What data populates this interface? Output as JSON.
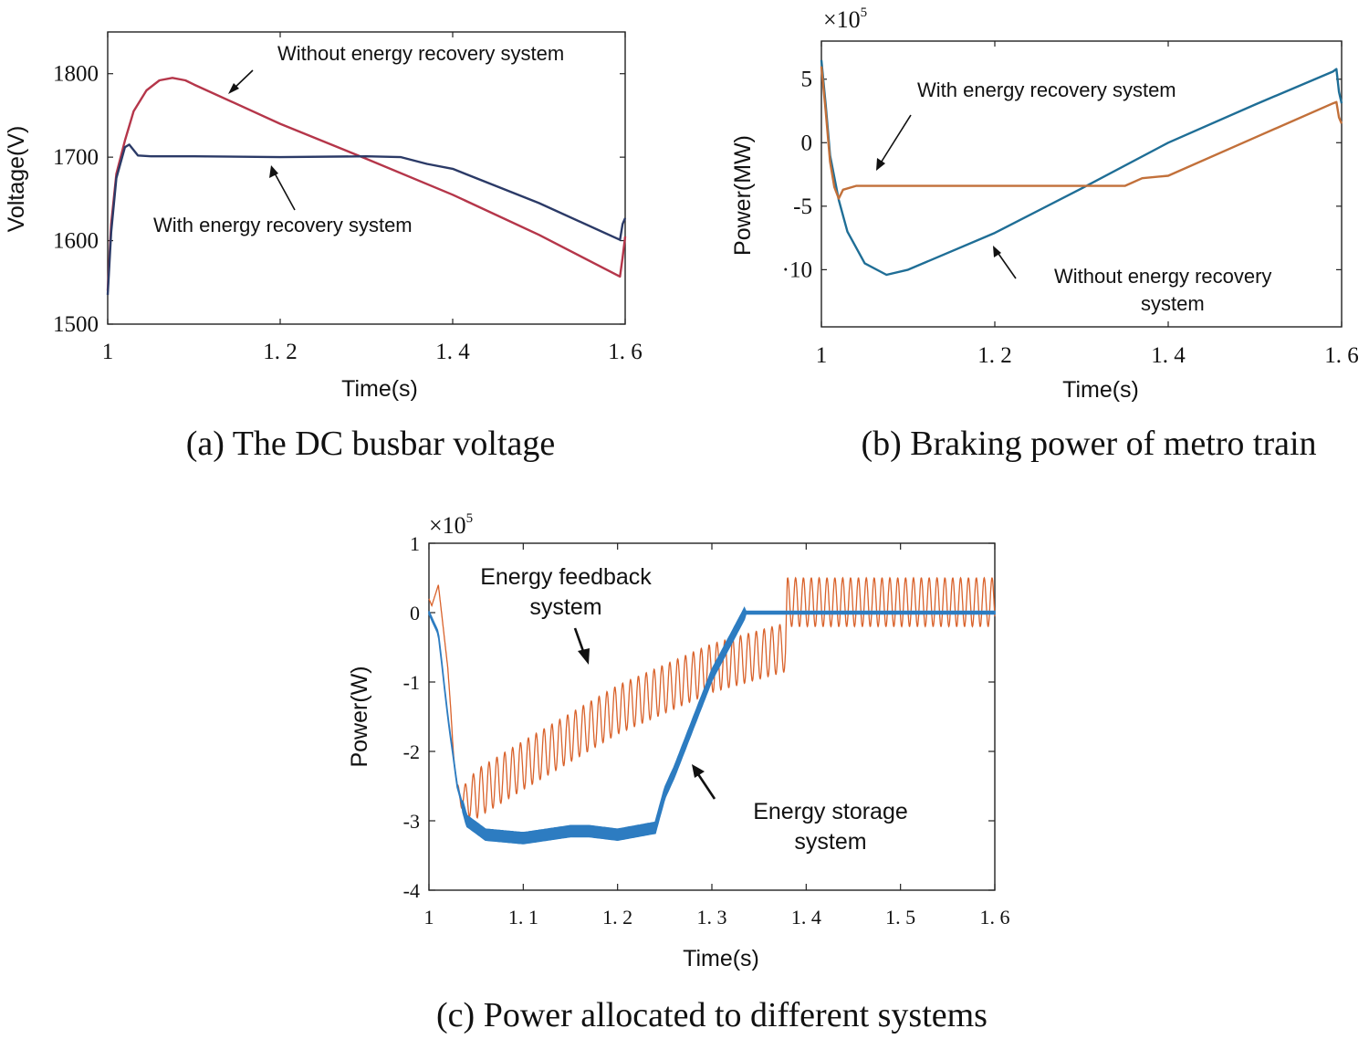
{
  "chart_data": [
    {
      "id": "a",
      "type": "line",
      "caption": "(a) The DC busbar voltage",
      "xlabel": "Time(s)",
      "ylabel": "Voltage(V)",
      "xlim": [
        1,
        1.6
      ],
      "ylim": [
        1500,
        1850
      ],
      "xticks": [
        1,
        1.2,
        1.4,
        1.6
      ],
      "xtick_labels": [
        "1",
        "1. 2",
        "1. 4",
        "1. 6"
      ],
      "yticks": [
        1500,
        1600,
        1700,
        1800
      ],
      "ytick_labels": [
        "1500",
        "1600",
        "1700",
        "1800"
      ],
      "series": [
        {
          "name": "Without energy recovery system",
          "color": "#b5364a",
          "x": [
            1.0,
            1.004,
            1.01,
            1.02,
            1.03,
            1.045,
            1.06,
            1.075,
            1.09,
            1.1,
            1.2,
            1.3,
            1.4,
            1.5,
            1.594,
            1.597,
            1.6
          ],
          "y": [
            1540,
            1620,
            1680,
            1720,
            1755,
            1780,
            1792,
            1795,
            1792,
            1787,
            1740,
            1698,
            1655,
            1607,
            1557,
            1580,
            1605
          ]
        },
        {
          "name": "With energy recovery system",
          "color": "#2b3a67",
          "x": [
            1.0,
            1.004,
            1.01,
            1.02,
            1.025,
            1.035,
            1.05,
            1.1,
            1.2,
            1.3,
            1.34,
            1.37,
            1.4,
            1.5,
            1.594,
            1.597,
            1.6
          ],
          "y": [
            1535,
            1610,
            1675,
            1712,
            1715,
            1702,
            1701,
            1701,
            1700,
            1701,
            1700,
            1692,
            1686,
            1645,
            1601,
            1620,
            1627
          ]
        }
      ],
      "annotations": [
        "Without energy recovery system",
        "With energy recovery system"
      ]
    },
    {
      "id": "b",
      "type": "line",
      "caption": "(b) Braking power of metro train",
      "xlabel": "Time(s)",
      "ylabel": "Power(MW)",
      "multiplier": "×10",
      "multiplier_exp": "5",
      "xlim": [
        1,
        1.6
      ],
      "ylim": [
        -14.5,
        8
      ],
      "xticks": [
        1,
        1.2,
        1.4,
        1.6
      ],
      "xtick_labels": [
        "1",
        "1. 2",
        "1. 4",
        "1. 6"
      ],
      "yticks": [
        5,
        0,
        -5,
        -10
      ],
      "ytick_labels": [
        "5",
        "0",
        "-5",
        "·10"
      ],
      "series": [
        {
          "name": "Without energy recovery system",
          "color": "#1f6e96",
          "x": [
            1.0,
            1.005,
            1.01,
            1.02,
            1.03,
            1.05,
            1.075,
            1.1,
            1.2,
            1.3,
            1.4,
            1.5,
            1.59,
            1.594,
            1.597,
            1.6
          ],
          "y": [
            6.5,
            3.0,
            -1.0,
            -4.5,
            -7.0,
            -9.5,
            -10.4,
            -10.0,
            -7.1,
            -3.6,
            0.0,
            3.0,
            5.6,
            5.8,
            4.0,
            3.1
          ]
        },
        {
          "name": "With energy recovery system",
          "color": "#c2703a",
          "x": [
            1.0,
            1.005,
            1.01,
            1.015,
            1.02,
            1.025,
            1.04,
            1.1,
            1.2,
            1.3,
            1.35,
            1.37,
            1.4,
            1.5,
            1.59,
            1.594,
            1.597,
            1.6
          ],
          "y": [
            6.0,
            2.5,
            -1.5,
            -3.5,
            -4.4,
            -3.7,
            -3.4,
            -3.4,
            -3.4,
            -3.4,
            -3.4,
            -2.8,
            -2.6,
            0.4,
            3.1,
            3.2,
            2.0,
            1.5
          ]
        }
      ],
      "annotations": [
        "With energy recovery system",
        "Without  energy recovery",
        "system"
      ]
    },
    {
      "id": "c",
      "type": "line",
      "caption": "(c) Power allocated to different systems",
      "xlabel": "Time(s)",
      "ylabel": "Power(W)",
      "multiplier": "×10",
      "multiplier_exp": "5",
      "xlim": [
        1,
        1.6
      ],
      "ylim": [
        -4,
        1
      ],
      "xticks": [
        1,
        1.1,
        1.2,
        1.3,
        1.4,
        1.5,
        1.6
      ],
      "xtick_labels": [
        "1",
        "1. 1",
        "1. 2",
        "1. 3",
        "1. 4",
        "1. 5",
        "1. 6"
      ],
      "yticks": [
        1,
        0,
        -1,
        -2,
        -3,
        -4
      ],
      "ytick_labels": [
        "1",
        "0",
        "-1",
        "-2",
        "-3",
        "-4"
      ],
      "series": [
        {
          "name": "Energy feedback system",
          "color": "#d9622b",
          "x": [
            1.0,
            1.003,
            1.01,
            1.02,
            1.025,
            1.03,
            1.04,
            1.1,
            1.2,
            1.3,
            1.378,
            1.38,
            1.45,
            1.5,
            1.6
          ],
          "y": [
            0.2,
            0.1,
            0.4,
            -0.8,
            -1.8,
            -2.6,
            -2.7,
            -2.2,
            -1.4,
            -0.8,
            -0.5,
            0.15,
            0.15,
            0.15,
            0.15
          ],
          "ripple_amplitude": 0.35
        },
        {
          "name": "Energy storage system",
          "color": "#2d7cc1",
          "x": [
            1.0,
            1.01,
            1.02,
            1.03,
            1.04,
            1.06,
            1.1,
            1.15,
            1.17,
            1.2,
            1.24,
            1.25,
            1.26,
            1.3,
            1.335,
            1.34,
            1.6
          ],
          "y": [
            0.0,
            -0.3,
            -1.5,
            -2.5,
            -3.0,
            -3.2,
            -3.25,
            -3.15,
            -3.15,
            -3.2,
            -3.1,
            -2.6,
            -2.3,
            -0.9,
            0.0,
            0.0,
            0.0
          ],
          "band_width": 0.08
        }
      ],
      "annotations": [
        "Energy feedback",
        "system",
        "Energy storage",
        "system"
      ]
    }
  ]
}
